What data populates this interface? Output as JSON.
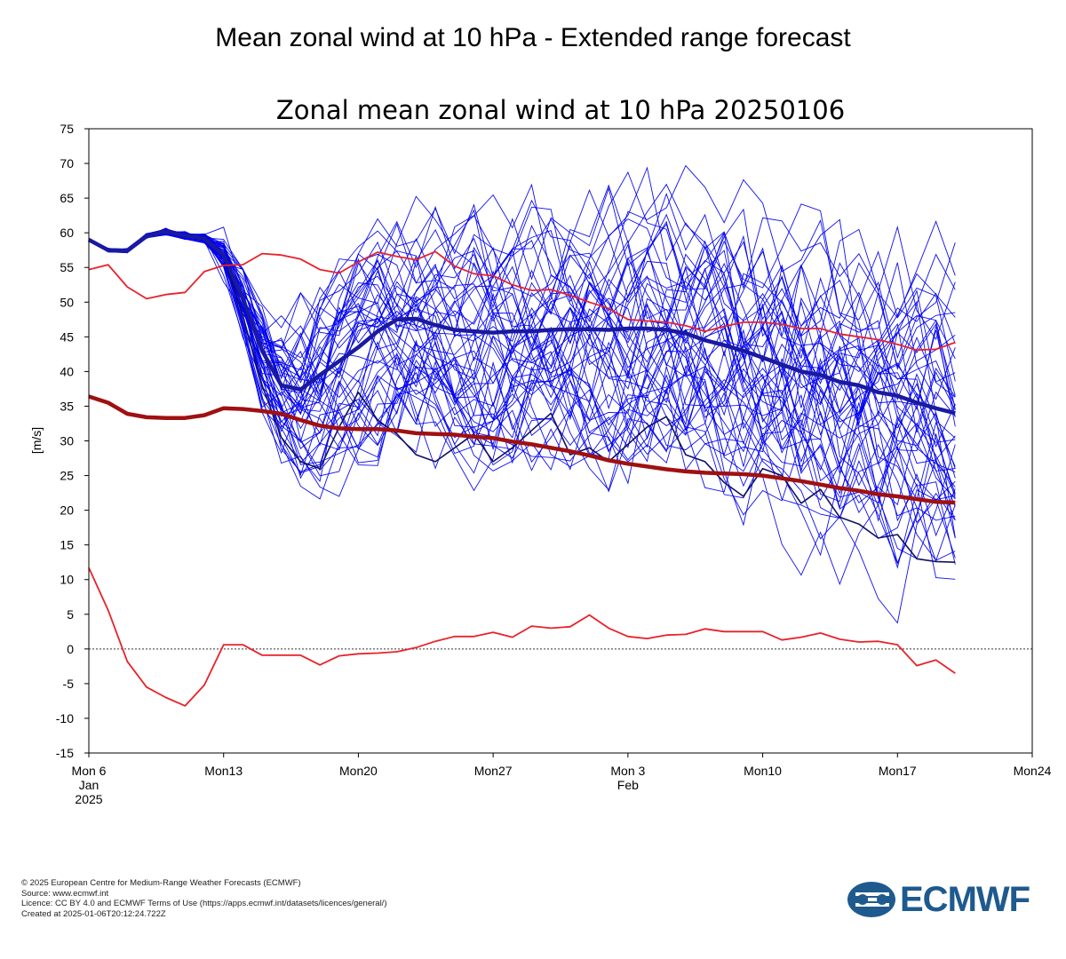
{
  "header": {
    "title": "Mean zonal wind at 10 hPa - Extended range forecast"
  },
  "chart_data": {
    "type": "line",
    "title": "Zonal mean zonal wind at 10 hPa 20250106",
    "ylabel": "[m/s]",
    "xlabel": "",
    "x_unit": "days from Mon 6 Jan 2025",
    "xlim": [
      0,
      49
    ],
    "ylim": [
      -15,
      75
    ],
    "yticks": [
      -15,
      -10,
      -5,
      0,
      5,
      10,
      15,
      20,
      25,
      30,
      35,
      40,
      45,
      50,
      55,
      60,
      65,
      70,
      75
    ],
    "xticks": [
      {
        "x": 0,
        "lines": [
          "Mon 6",
          "Jan",
          "2025"
        ]
      },
      {
        "x": 7,
        "lines": [
          "Mon13"
        ]
      },
      {
        "x": 14,
        "lines": [
          "Mon20"
        ]
      },
      {
        "x": 21,
        "lines": [
          "Mon27"
        ]
      },
      {
        "x": 28,
        "lines": [
          "Mon 3",
          "Feb"
        ]
      },
      {
        "x": 35,
        "lines": [
          "Mon10"
        ]
      },
      {
        "x": 42,
        "lines": [
          "Mon17"
        ]
      },
      {
        "x": 49,
        "lines": [
          "Mon24"
        ]
      }
    ],
    "zero_line": true,
    "colors": {
      "ensemble": "#0000ee",
      "ensemble_mean": "#1a1aa0",
      "control": "#101060",
      "climatology": "#e8222a",
      "climatology_mean": "#a01010"
    },
    "series": [
      {
        "role": "climatology-max",
        "x": [
          0,
          1,
          2,
          3,
          4,
          5,
          6,
          7,
          8,
          9,
          10,
          11,
          12,
          13,
          14,
          15,
          16,
          17,
          18,
          19,
          20,
          21,
          22,
          23,
          24,
          25,
          26,
          27,
          28,
          29,
          30,
          31,
          32,
          33,
          34,
          35,
          36,
          37,
          38,
          39,
          40,
          41,
          42,
          43,
          44,
          45
        ],
        "values": [
          54.7,
          55.4,
          52.2,
          50.5,
          51.1,
          51.4,
          54.4,
          55.3,
          55.4,
          57.0,
          56.8,
          56.2,
          54.7,
          54.2,
          55.8,
          57.2,
          56.6,
          56.1,
          57.3,
          55.2,
          54.1,
          53.8,
          52.5,
          51.7,
          51.8,
          51.0,
          50.0,
          49.1,
          47.5,
          47.3,
          47.1,
          46.6,
          45.8,
          46.5,
          47.1,
          47.1,
          46.8,
          46.2,
          46.2,
          45.4,
          45.0,
          44.6,
          43.9,
          43.1,
          43.2,
          44.2
        ]
      },
      {
        "role": "climatology-min",
        "x": [
          0,
          1,
          2,
          3,
          4,
          5,
          6,
          7,
          8,
          9,
          10,
          11,
          12,
          13,
          14,
          15,
          16,
          17,
          18,
          19,
          20,
          21,
          22,
          23,
          24,
          25,
          26,
          27,
          28,
          29,
          30,
          31,
          32,
          33,
          34,
          35,
          36,
          37,
          38,
          39,
          40,
          41,
          42,
          43,
          44,
          45
        ],
        "values": [
          11.7,
          5.6,
          -1.8,
          -5.5,
          -7.0,
          -8.2,
          -5.2,
          0.6,
          0.6,
          -0.9,
          -0.9,
          -0.9,
          -2.3,
          -1.0,
          -0.7,
          -0.6,
          -0.4,
          0.2,
          1.1,
          1.8,
          1.8,
          2.4,
          1.7,
          3.3,
          3.0,
          3.2,
          4.9,
          3.0,
          1.8,
          1.5,
          2.0,
          2.1,
          2.9,
          2.5,
          2.5,
          2.5,
          1.3,
          1.7,
          2.3,
          1.4,
          1.0,
          1.1,
          0.6,
          -2.4,
          -1.6,
          -3.5
        ]
      },
      {
        "role": "climatology-mean",
        "x": [
          0,
          1,
          2,
          3,
          4,
          5,
          6,
          7,
          8,
          9,
          10,
          11,
          12,
          13,
          14,
          15,
          16,
          17,
          18,
          19,
          20,
          21,
          22,
          23,
          24,
          25,
          26,
          27,
          28,
          29,
          30,
          31,
          32,
          33,
          34,
          35,
          36,
          37,
          38,
          39,
          40,
          41,
          42,
          43,
          44,
          45
        ],
        "values": [
          36.4,
          35.5,
          33.9,
          33.4,
          33.3,
          33.3,
          33.7,
          34.7,
          34.6,
          34.3,
          33.9,
          33.0,
          32.2,
          31.8,
          31.7,
          31.7,
          31.5,
          31.1,
          31.0,
          30.9,
          30.6,
          30.4,
          29.9,
          29.5,
          29.0,
          28.5,
          27.9,
          27.2,
          26.7,
          26.3,
          25.9,
          25.6,
          25.4,
          25.3,
          25.2,
          25.0,
          24.6,
          24.2,
          23.7,
          23.2,
          22.8,
          22.3,
          22.0,
          21.6,
          21.2,
          21.1
        ]
      },
      {
        "name": "Ensemble mean",
        "role": "ensemble-mean",
        "x": [
          0,
          1,
          2,
          3,
          4,
          5,
          6,
          7,
          8,
          9,
          10,
          11,
          12,
          13,
          14,
          15,
          16,
          17,
          18,
          19,
          20,
          21,
          22,
          23,
          24,
          25,
          26,
          27,
          28,
          29,
          30,
          31,
          32,
          33,
          34,
          35,
          36,
          37,
          38,
          39,
          40,
          41,
          42,
          43,
          44,
          45
        ],
        "values": [
          59.0,
          57.5,
          57.4,
          59.5,
          60.2,
          59.6,
          59.2,
          56.8,
          50.5,
          43.0,
          38.0,
          37.4,
          39.5,
          41.5,
          43.5,
          45.8,
          47.5,
          47.6,
          46.7,
          46.0,
          45.8,
          45.6,
          45.8,
          45.8,
          46.0,
          46.1,
          46.1,
          46.0,
          46.2,
          46.2,
          46.0,
          45.5,
          44.5,
          43.8,
          43.0,
          42.0,
          41.0,
          40.0,
          39.5,
          38.5,
          38.0,
          37.0,
          36.5,
          35.5,
          34.7,
          34.0
        ]
      },
      {
        "role": "control",
        "x": [
          0,
          1,
          2,
          3,
          4,
          5,
          6,
          7,
          8,
          9,
          10,
          11,
          12,
          13,
          14,
          15,
          16,
          17,
          18,
          19,
          20,
          21,
          22,
          23,
          24,
          25,
          26,
          27,
          28,
          29,
          30,
          31,
          32,
          33,
          34,
          35,
          36,
          37,
          38,
          39,
          40,
          41,
          42,
          43,
          44,
          45
        ],
        "values": [
          59.0,
          57.5,
          57.4,
          59.5,
          60.2,
          59.6,
          59.2,
          56.8,
          48.0,
          38.0,
          30.5,
          27.0,
          26.0,
          32.0,
          37.0,
          33.0,
          31.0,
          28.0,
          27.0,
          29.0,
          31.0,
          27.0,
          29.0,
          31.5,
          34.0,
          28.0,
          29.0,
          27.0,
          29.5,
          32.0,
          33.5,
          28.0,
          27.0,
          24.0,
          22.0,
          26.0,
          25.0,
          21.0,
          23.0,
          19.0,
          18.0,
          16.0,
          16.5,
          13.0,
          12.6,
          12.5
        ]
      }
    ]
  },
  "footer": {
    "lines": [
      "© 2025 European Centre for Medium-Range Weather Forecasts (ECMWF)",
      "Source: www.ecmwf.int",
      "Licence: CC BY 4.0 and ECMWF Terms of Use (https://apps.ecmwf.int/datasets/licences/general/)",
      "Created at 2025-01-06T20:12:24.722Z"
    ]
  },
  "logo": {
    "text": "ECMWF",
    "color": "#1e5a8e"
  }
}
